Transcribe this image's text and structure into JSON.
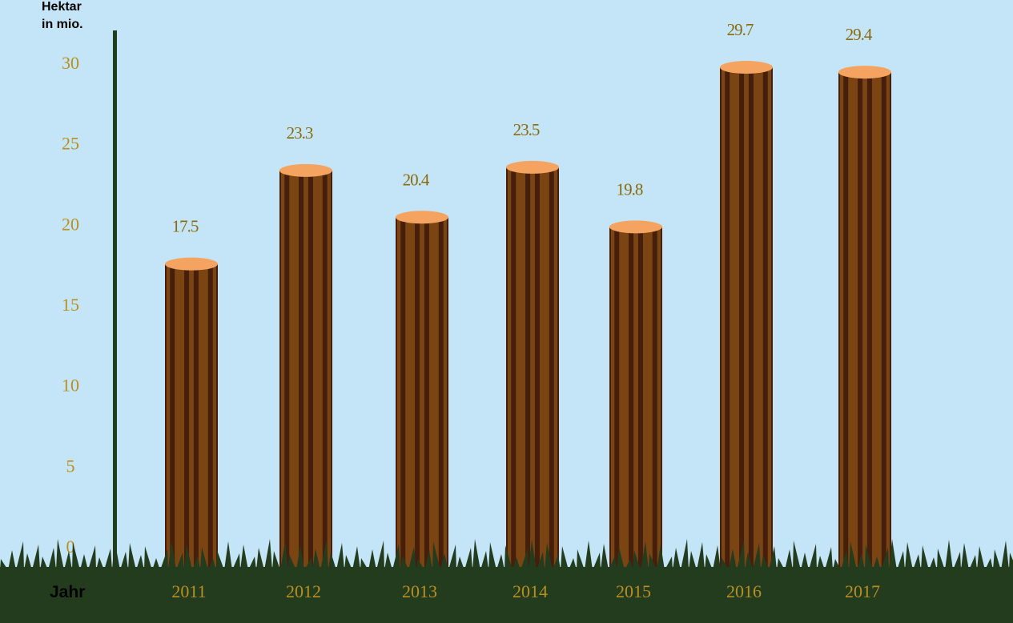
{
  "chart_data": {
    "type": "bar",
    "ylabel": "Hektar\nin mio.",
    "xlabel": "Jahr",
    "categories": [
      "2011",
      "2012",
      "2013",
      "2014",
      "2015",
      "2016",
      "2017"
    ],
    "values": [
      17.5,
      23.3,
      20.4,
      23.5,
      19.8,
      29.7,
      29.4
    ],
    "data_labels": [
      "17.5",
      "23.3",
      "20.4",
      "23.5",
      "19.8",
      "29.7",
      "29.4"
    ],
    "yticks": [
      0,
      5,
      10,
      15,
      20,
      25,
      30
    ],
    "ylim": [
      0,
      30
    ],
    "grid": false,
    "legend": "none"
  },
  "colors": {
    "background": "#c4e5f7",
    "trunk": "#7a4513",
    "trunk_stripe": "#451f0c",
    "trunk_top": "#f4a460",
    "grass": "#243c1e",
    "axis": "#1f3d1f",
    "tick_label": "#b98f22",
    "value_label": "#8a6a10"
  }
}
